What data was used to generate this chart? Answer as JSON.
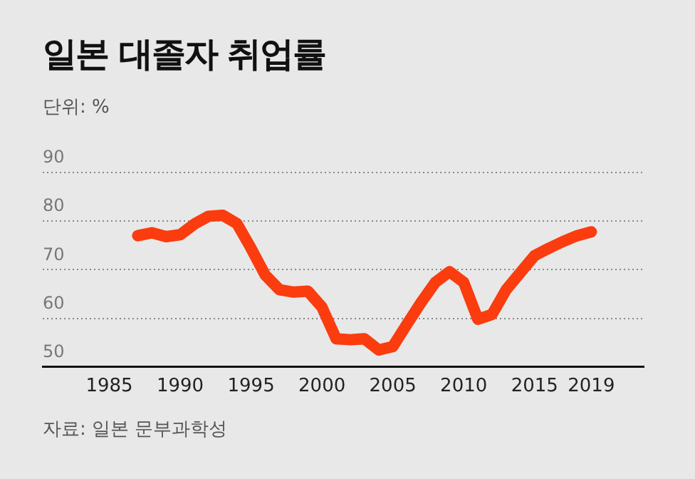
{
  "chart_data": {
    "type": "line",
    "title": "일본 대졸자 취업률",
    "subtitle": "단위: %",
    "annotations": [
      "자료: 일본 문부과학성"
    ],
    "x": [
      1987,
      1988,
      1989,
      1990,
      1991,
      1992,
      1993,
      1994,
      1995,
      1996,
      1997,
      1998,
      1999,
      2000,
      2001,
      2002,
      2003,
      2004,
      2005,
      2006,
      2007,
      2008,
      2009,
      2010,
      2011,
      2012,
      2013,
      2014,
      2015,
      2016,
      2017,
      2018,
      2019
    ],
    "series": [
      {
        "color": "#fa3c0f",
        "values": [
          77.0,
          77.6,
          76.8,
          77.2,
          79.4,
          81.0,
          81.2,
          79.5,
          74.4,
          68.9,
          65.9,
          65.4,
          65.6,
          62.3,
          55.8,
          55.6,
          55.8,
          53.5,
          54.2,
          58.8,
          63.3,
          67.4,
          69.6,
          67.4,
          59.8,
          60.8,
          65.9,
          69.4,
          72.9,
          74.4,
          75.8,
          77.0,
          77.8
        ]
      }
    ],
    "xlim": [
      1980.3,
      2022.7
    ],
    "xticks": [
      1985,
      1990,
      1995,
      2000,
      2005,
      2010,
      2015,
      2019
    ],
    "ylim": [
      50,
      90
    ],
    "yticks": [
      50,
      60,
      70,
      80,
      90
    ],
    "grid": "y",
    "legend": false,
    "marker": "none",
    "line_style": "solid"
  }
}
